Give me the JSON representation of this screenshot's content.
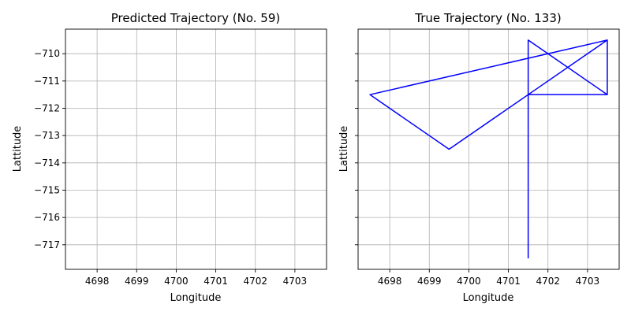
{
  "chart_data": [
    {
      "type": "line",
      "title": "Predicted Trajectory (No. 59)",
      "xlabel": "Longitude",
      "ylabel": "Lattitude",
      "xlim": [
        4697.2,
        4703.8
      ],
      "ylim": [
        -717.9,
        -709.1
      ],
      "xticks": [
        4698,
        4699,
        4700,
        4701,
        4702,
        4703
      ],
      "yticks": [
        -710,
        -711,
        -712,
        -713,
        -714,
        -715,
        -716,
        -717
      ],
      "xtick_labels": [
        "4698",
        "4699",
        "4700",
        "4701",
        "4702",
        "4703"
      ],
      "ytick_labels": [
        "−710",
        "−711",
        "−712",
        "−713",
        "−714",
        "−715",
        "−716",
        "−717"
      ],
      "show_ytick_labels": true,
      "grid": true,
      "series": [
        {
          "color": "#0000ff",
          "points": []
        }
      ]
    },
    {
      "type": "line",
      "title": "True Trajectory (No. 133)",
      "xlabel": "Longitude",
      "ylabel": "Lattitude",
      "xlim": [
        4697.2,
        4703.8
      ],
      "ylim": [
        -717.9,
        -709.1
      ],
      "xticks": [
        4698,
        4699,
        4700,
        4701,
        4702,
        4703
      ],
      "yticks": [
        -710,
        -711,
        -712,
        -713,
        -714,
        -715,
        -716,
        -717
      ],
      "xtick_labels": [
        "4698",
        "4699",
        "4700",
        "4701",
        "4702",
        "4703"
      ],
      "ytick_labels": [],
      "show_ytick_labels": false,
      "grid": true,
      "series": [
        {
          "color": "#0000ff",
          "points": [
            [
              4701.5,
              -717.5
            ],
            [
              4701.5,
              -711.5
            ],
            [
              4703.5,
              -711.5
            ],
            [
              4703.5,
              -709.5
            ],
            [
              4701.5,
              -711.5
            ],
            [
              4703.5,
              -711.5
            ],
            [
              4701.5,
              -709.5
            ],
            [
              4701.5,
              -711.5
            ],
            [
              4703.5,
              -709.5
            ],
            [
              4697.5,
              -711.5
            ],
            [
              4699.5,
              -713.5
            ],
            [
              4701.5,
              -711.5
            ]
          ]
        }
      ]
    }
  ]
}
